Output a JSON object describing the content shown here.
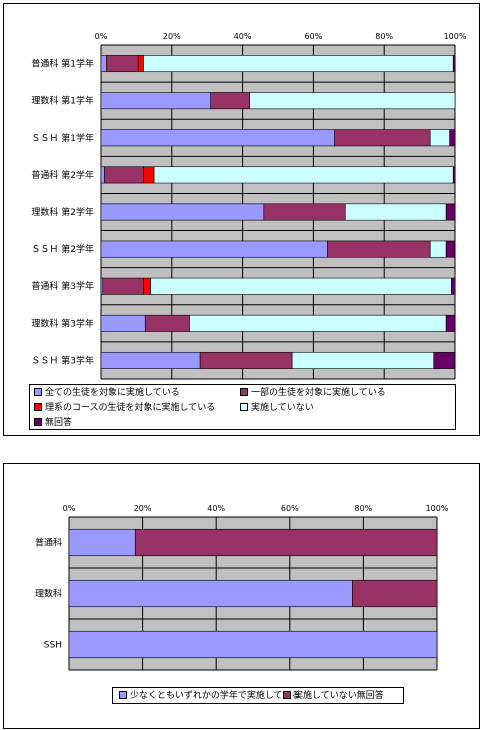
{
  "chart_data": [
    {
      "type": "bar",
      "orientation": "horizontal",
      "stacked": "percent",
      "categories": [
        "普通科 第1学年",
        "理数科 第1学年",
        "ＳＳＨ 第1学年",
        "普通科 第2学年",
        "理数科 第2学年",
        "ＳＳＨ 第2学年",
        "普通科 第3学年",
        "理数科 第3学年",
        "ＳＳＨ 第3学年"
      ],
      "x_ticks": [
        "0%",
        "20%",
        "40%",
        "60%",
        "80%",
        "100%"
      ],
      "xlim": [
        0,
        100
      ],
      "grid": true,
      "legend_position": "bottom",
      "series": [
        {
          "name": "全ての生徒を対象に実施している",
          "color": "#9999ff",
          "values": [
            1.5,
            31,
            66,
            1,
            46,
            64,
            0.5,
            12.5,
            28
          ]
        },
        {
          "name": "一部の生徒を対象に実施している",
          "color": "#993366",
          "values": [
            9,
            11,
            27,
            11,
            23,
            29,
            11.5,
            12.5,
            26
          ]
        },
        {
          "name": "理系のコースの生徒を対象に実施している",
          "color": "#ff0000",
          "values": [
            1.5,
            0,
            0,
            3,
            0,
            0,
            2,
            0,
            0
          ]
        },
        {
          "name": "実施していない",
          "color": "#ccffff",
          "values": [
            87.5,
            58,
            5.5,
            84.5,
            28.5,
            4.5,
            85,
            72.5,
            40
          ]
        },
        {
          "name": "無回答",
          "color": "#660066",
          "values": [
            0.5,
            0,
            1.5,
            0.5,
            2.5,
            2.5,
            1,
            2.5,
            6
          ]
        }
      ]
    },
    {
      "type": "bar",
      "orientation": "horizontal",
      "stacked": "percent",
      "categories": [
        "普通科",
        "理数科",
        "SSH"
      ],
      "x_ticks": [
        "0%",
        "20%",
        "40%",
        "60%",
        "80%",
        "100%"
      ],
      "xlim": [
        0,
        100
      ],
      "grid": true,
      "legend_position": "bottom",
      "series": [
        {
          "name": "少なくともいずれかの学年で実施している",
          "color": "#9999ff",
          "values": [
            18,
            77,
            100
          ]
        },
        {
          "name": "実施していない無回答",
          "color": "#993366",
          "values": [
            82,
            23,
            0
          ]
        }
      ]
    }
  ]
}
